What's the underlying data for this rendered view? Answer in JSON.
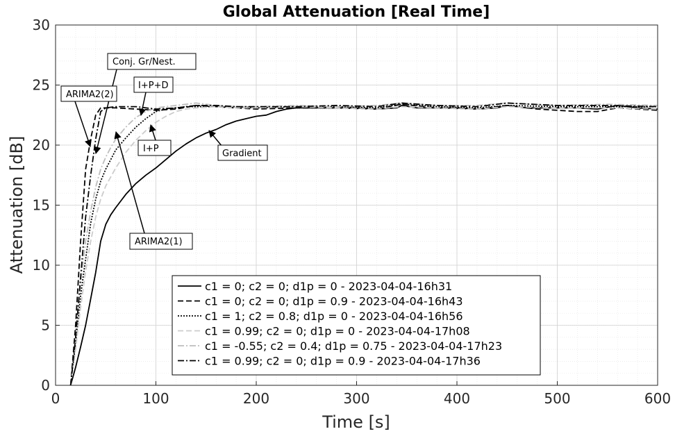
{
  "chart_data": {
    "type": "line",
    "title": "Global Attenuation [Real Time]",
    "xlabel": "Time [s]",
    "ylabel": "Attenuation [dB]",
    "xlim": [
      0,
      600
    ],
    "ylim": [
      0,
      30
    ],
    "xticks": [
      0,
      100,
      200,
      300,
      400,
      500,
      600
    ],
    "yticks": [
      0,
      5,
      10,
      15,
      20,
      25,
      30
    ],
    "grid": "major and minor",
    "legend_position": "bottom-center",
    "series": [
      {
        "name": "c1 = 0; c2 = 0; d1p = 0 - 2023-04-04-16h31",
        "color": "#000000",
        "dash": "solid",
        "x": [
          15,
          20,
          25,
          30,
          35,
          40,
          45,
          50,
          55,
          60,
          70,
          80,
          90,
          100,
          110,
          120,
          130,
          140,
          150,
          160,
          170,
          180,
          190,
          200,
          210,
          220,
          230,
          240,
          260,
          280,
          300,
          320,
          340,
          345,
          360,
          380,
          400,
          420,
          440,
          450,
          470,
          500,
          520,
          540,
          560,
          580,
          600
        ],
        "y": [
          0,
          1.5,
          3.2,
          5.0,
          7.2,
          9.4,
          12.0,
          13.4,
          14.2,
          14.8,
          15.9,
          16.8,
          17.5,
          18.1,
          18.8,
          19.5,
          20.1,
          20.6,
          21.0,
          21.3,
          21.7,
          22.0,
          22.2,
          22.4,
          22.5,
          22.8,
          23.0,
          23.1,
          23.1,
          23.1,
          23.1,
          23.0,
          23.1,
          23.3,
          23.1,
          23.1,
          23.1,
          23.0,
          23.1,
          23.3,
          23.1,
          23.1,
          23.1,
          23.0,
          23.3,
          23.1,
          23.0
        ]
      },
      {
        "name": "c1 = 0; c2 = 0; d1p = 0.9 - 2023-04-04-16h43",
        "color": "#000000",
        "dash": "dashed",
        "x": [
          15,
          20,
          25,
          30,
          35,
          40,
          45,
          50,
          60,
          80,
          100,
          120,
          140,
          160,
          180,
          200,
          240,
          280,
          320,
          345,
          380,
          420,
          450,
          480,
          520,
          540,
          560,
          600
        ],
        "y": [
          0,
          5,
          12,
          18,
          20.5,
          22.5,
          23.1,
          23.1,
          23.1,
          23.0,
          22.9,
          23.0,
          23.3,
          23.2,
          23.1,
          23.0,
          23.1,
          23.1,
          23.0,
          23.4,
          23.1,
          23.0,
          23.3,
          23.0,
          22.8,
          22.8,
          23.1,
          22.9
        ]
      },
      {
        "name": "c1 = 1; c2 = 0.8; d1p = 0 - 2023-04-04-16h56",
        "color": "#000000",
        "dash": "dotted",
        "x": [
          15,
          20,
          25,
          30,
          35,
          40,
          45,
          50,
          55,
          60,
          70,
          80,
          90,
          100,
          110,
          120,
          130,
          140,
          160,
          180,
          200,
          240,
          280,
          320,
          345,
          380,
          420,
          450,
          500,
          550,
          600
        ],
        "y": [
          0,
          3.5,
          7.5,
          10.5,
          13.5,
          15.5,
          17.0,
          18.0,
          18.8,
          19.6,
          20.6,
          21.5,
          22.2,
          22.8,
          23.0,
          23.1,
          23.2,
          23.2,
          23.2,
          23.2,
          23.1,
          23.2,
          23.2,
          23.1,
          23.4,
          23.2,
          23.1,
          23.3,
          23.2,
          23.2,
          23.2
        ]
      },
      {
        "name": "c1 = 0.99; c2 = 0; d1p = 0 - 2023-04-04-17h08",
        "color": "#cccccc",
        "dash": "dashed",
        "x": [
          15,
          20,
          25,
          30,
          35,
          40,
          45,
          50,
          60,
          70,
          80,
          90,
          100,
          110,
          120,
          130,
          140,
          160,
          180,
          200,
          240,
          280,
          320,
          345,
          380,
          420,
          450,
          500,
          550,
          600
        ],
        "y": [
          0,
          3.0,
          6.5,
          9.5,
          12.0,
          14.0,
          15.5,
          16.6,
          18.1,
          19.4,
          20.4,
          21.2,
          21.9,
          22.4,
          22.8,
          23.0,
          23.1,
          23.2,
          23.1,
          23.1,
          23.2,
          23.1,
          23.0,
          23.2,
          23.1,
          23.0,
          23.2,
          23.1,
          23.1,
          23.0
        ]
      },
      {
        "name": "c1 = -0.55; c2 = 0.4; d1p = 0.75 - 2023-04-04-17h23",
        "color": "#bdbdbd",
        "dash": "dashdot",
        "x": [
          15,
          20,
          25,
          30,
          35,
          40,
          45,
          50,
          55,
          60,
          70,
          80,
          90,
          100,
          110,
          120,
          130,
          140,
          160,
          180,
          200,
          240,
          280,
          320,
          345,
          380,
          420,
          450,
          500,
          550,
          600
        ],
        "y": [
          0,
          4.0,
          8.5,
          12.0,
          14.5,
          16.5,
          18.0,
          19.0,
          19.8,
          20.5,
          21.5,
          22.3,
          22.8,
          23.1,
          23.2,
          23.3,
          23.4,
          23.5,
          23.3,
          23.2,
          23.2,
          23.3,
          23.2,
          23.3,
          23.5,
          23.3,
          23.3,
          23.5,
          23.3,
          23.4,
          23.3
        ]
      },
      {
        "name": "c1 = 0.99; c2 = 0; d1p = 0.9 - 2023-04-04-17h36",
        "color": "#000000",
        "dash": "dashdot",
        "x": [
          15,
          20,
          25,
          30,
          35,
          40,
          45,
          50,
          60,
          80,
          100,
          120,
          140,
          160,
          180,
          200,
          240,
          280,
          320,
          345,
          380,
          420,
          450,
          500,
          550,
          600
        ],
        "y": [
          0,
          4.0,
          9.0,
          14.0,
          17.5,
          20.5,
          22.8,
          23.1,
          23.2,
          23.2,
          23.0,
          23.1,
          23.3,
          23.3,
          23.2,
          23.2,
          23.2,
          23.3,
          23.2,
          23.5,
          23.3,
          23.2,
          23.5,
          23.3,
          23.3,
          23.2
        ]
      }
    ],
    "annotations": [
      {
        "text": "Conj. Gr/Nest.",
        "arrow_to": [
          40,
          19.2
        ]
      },
      {
        "text": "ARIMA2(2)",
        "arrow_to": [
          34,
          19.8
        ]
      },
      {
        "text": "I+P+D",
        "arrow_to": [
          85,
          22.5
        ]
      },
      {
        "text": "I+P",
        "arrow_to": [
          96,
          21.7
        ]
      },
      {
        "text": "Gradient",
        "arrow_to": [
          152,
          21.0
        ]
      },
      {
        "text": "ARIMA2(1)",
        "arrow_to": [
          60,
          21.1
        ]
      }
    ]
  }
}
